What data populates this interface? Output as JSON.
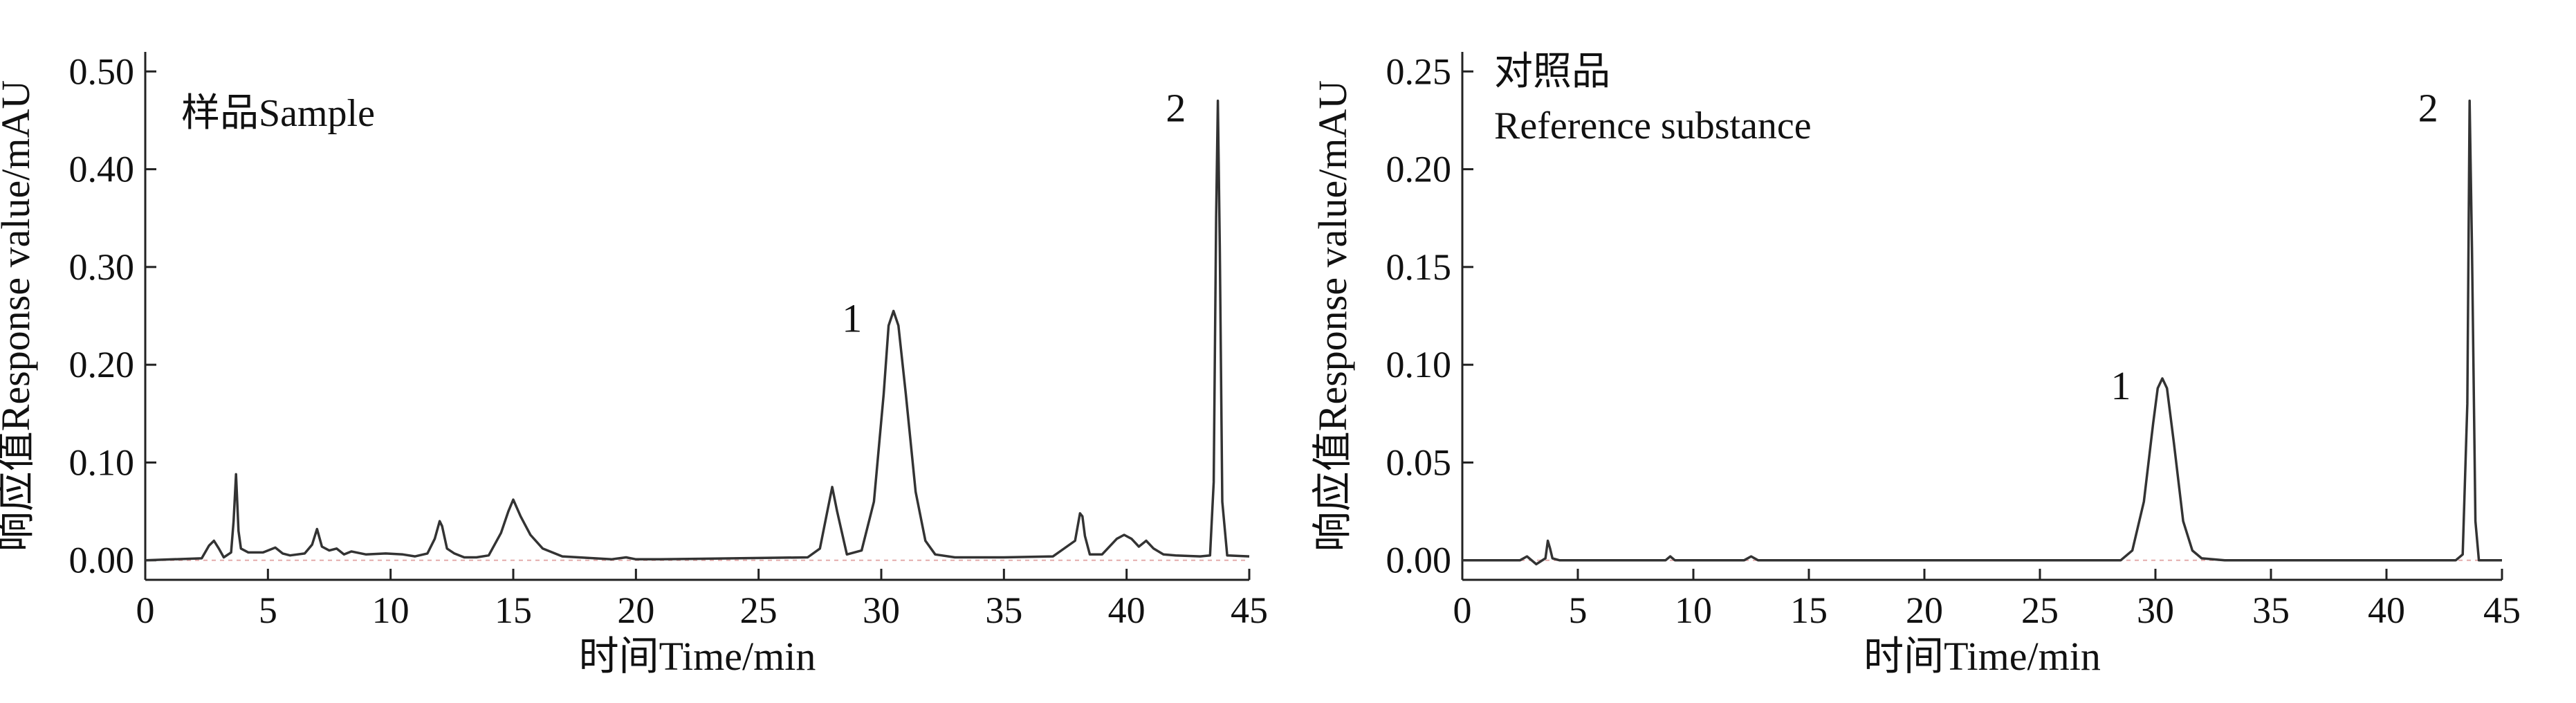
{
  "chart_data": [
    {
      "type": "line",
      "title": "",
      "annotation": "样品Sample",
      "xlabel": "时间Time/min",
      "ylabel": "响应值Response value/mAU",
      "xlim": [
        0,
        45
      ],
      "ylim": [
        -0.02,
        0.52
      ],
      "x_ticks": [
        0,
        5,
        10,
        15,
        20,
        25,
        30,
        35,
        40,
        45
      ],
      "x_tick_labels": [
        "0",
        "5",
        "10",
        "15",
        "20",
        "25",
        "30",
        "35",
        "40",
        "45"
      ],
      "y_ticks": [
        0.0,
        0.1,
        0.2,
        0.3,
        0.4,
        0.5
      ],
      "y_tick_labels": [
        "0.00",
        "0.10",
        "0.20",
        "0.30",
        "0.40",
        "0.50"
      ],
      "grid": false,
      "line_color": "#333333",
      "baseline_color": "#d98a8a",
      "peak_labels": [
        {
          "label": "1",
          "x": 30.5,
          "y": 0.255
        },
        {
          "label": "2",
          "x": 43.7,
          "y": 0.47
        }
      ],
      "series": [
        {
          "x": [
            0,
            2.3,
            2.6,
            2.8,
            3.0,
            3.2,
            3.5,
            3.6,
            3.7,
            3.8,
            3.9,
            4.2,
            4.8,
            5.3,
            5.6,
            5.9,
            6.5,
            6.8,
            7.0,
            7.2,
            7.5,
            7.8,
            8.1,
            8.4,
            9.0,
            9.8,
            10.5,
            11.0,
            11.5,
            11.8,
            12.0,
            12.1,
            12.3,
            12.6,
            13.0,
            13.5,
            14.0,
            14.5,
            14.8,
            15.0,
            15.3,
            15.7,
            16.2,
            17.0,
            19.0,
            19.6,
            20.0,
            21.0,
            24.0,
            27.0,
            27.5,
            27.8,
            28.0,
            28.2,
            28.6,
            29.2,
            29.7,
            30.1,
            30.3,
            30.5,
            30.7,
            31.0,
            31.4,
            31.8,
            32.2,
            33.0,
            35.0,
            37.0,
            37.9,
            38.1,
            38.2,
            38.3,
            38.5,
            39.0,
            39.6,
            39.9,
            40.2,
            40.5,
            40.8,
            41.1,
            41.5,
            42.0,
            43.0,
            43.4,
            43.55,
            43.65,
            43.72,
            43.8,
            43.9,
            44.1,
            45.0
          ],
          "y": [
            0.0,
            0.002,
            0.015,
            0.02,
            0.012,
            0.003,
            0.008,
            0.04,
            0.088,
            0.03,
            0.012,
            0.008,
            0.008,
            0.013,
            0.007,
            0.005,
            0.007,
            0.016,
            0.032,
            0.014,
            0.01,
            0.012,
            0.006,
            0.009,
            0.006,
            0.007,
            0.006,
            0.004,
            0.007,
            0.022,
            0.04,
            0.035,
            0.012,
            0.007,
            0.003,
            0.003,
            0.005,
            0.028,
            0.05,
            0.062,
            0.045,
            0.026,
            0.012,
            0.004,
            0.001,
            0.003,
            0.001,
            0.001,
            0.002,
            0.003,
            0.012,
            0.05,
            0.075,
            0.05,
            0.006,
            0.01,
            0.06,
            0.17,
            0.24,
            0.255,
            0.24,
            0.17,
            0.07,
            0.02,
            0.006,
            0.003,
            0.003,
            0.004,
            0.02,
            0.048,
            0.045,
            0.025,
            0.006,
            0.006,
            0.022,
            0.026,
            0.022,
            0.014,
            0.02,
            0.012,
            0.006,
            0.005,
            0.004,
            0.005,
            0.08,
            0.35,
            0.47,
            0.32,
            0.06,
            0.005,
            0.004
          ]
        }
      ]
    },
    {
      "type": "line",
      "title": "",
      "annotation_lines": [
        "对照品",
        "Reference substance"
      ],
      "xlabel": "时间Time/min",
      "ylabel": "响应值Response value/mAU",
      "xlim": [
        0,
        45
      ],
      "ylim": [
        -0.01,
        0.26
      ],
      "x_ticks": [
        0,
        5,
        10,
        15,
        20,
        25,
        30,
        35,
        40,
        45
      ],
      "x_tick_labels": [
        "0",
        "5",
        "10",
        "15",
        "20",
        "25",
        "30",
        "35",
        "40",
        "45"
      ],
      "y_ticks": [
        0.0,
        0.05,
        0.1,
        0.15,
        0.2,
        0.25
      ],
      "y_tick_labels": [
        "0.00",
        "0.05",
        "0.10",
        "0.15",
        "0.20",
        "0.25"
      ],
      "grid": false,
      "line_color": "#333333",
      "baseline_color": "#d98a8a",
      "peak_labels": [
        {
          "label": "1",
          "x": 30.3,
          "y": 0.093
        },
        {
          "label": "2",
          "x": 43.6,
          "y": 0.235
        }
      ],
      "series": [
        {
          "x": [
            0,
            2.5,
            2.8,
            3.2,
            3.6,
            3.7,
            3.8,
            3.9,
            4.2,
            8.8,
            9.0,
            9.2,
            12.2,
            12.5,
            12.8,
            20.0,
            28.5,
            29.0,
            29.5,
            29.9,
            30.1,
            30.3,
            30.5,
            30.8,
            31.2,
            31.6,
            32.0,
            33.0,
            43.0,
            43.3,
            43.5,
            43.6,
            43.7,
            43.85,
            44.0,
            45.0
          ],
          "y": [
            0.0,
            0.0,
            0.002,
            -0.002,
            0.001,
            0.01,
            0.006,
            0.001,
            0.0,
            0.0,
            0.002,
            0.0,
            0.0,
            0.002,
            0.0,
            0.0,
            0.0,
            0.005,
            0.03,
            0.07,
            0.088,
            0.093,
            0.088,
            0.06,
            0.02,
            0.005,
            0.001,
            0.0,
            0.0,
            0.003,
            0.08,
            0.235,
            0.16,
            0.02,
            0.0,
            0.0
          ]
        }
      ]
    }
  ]
}
